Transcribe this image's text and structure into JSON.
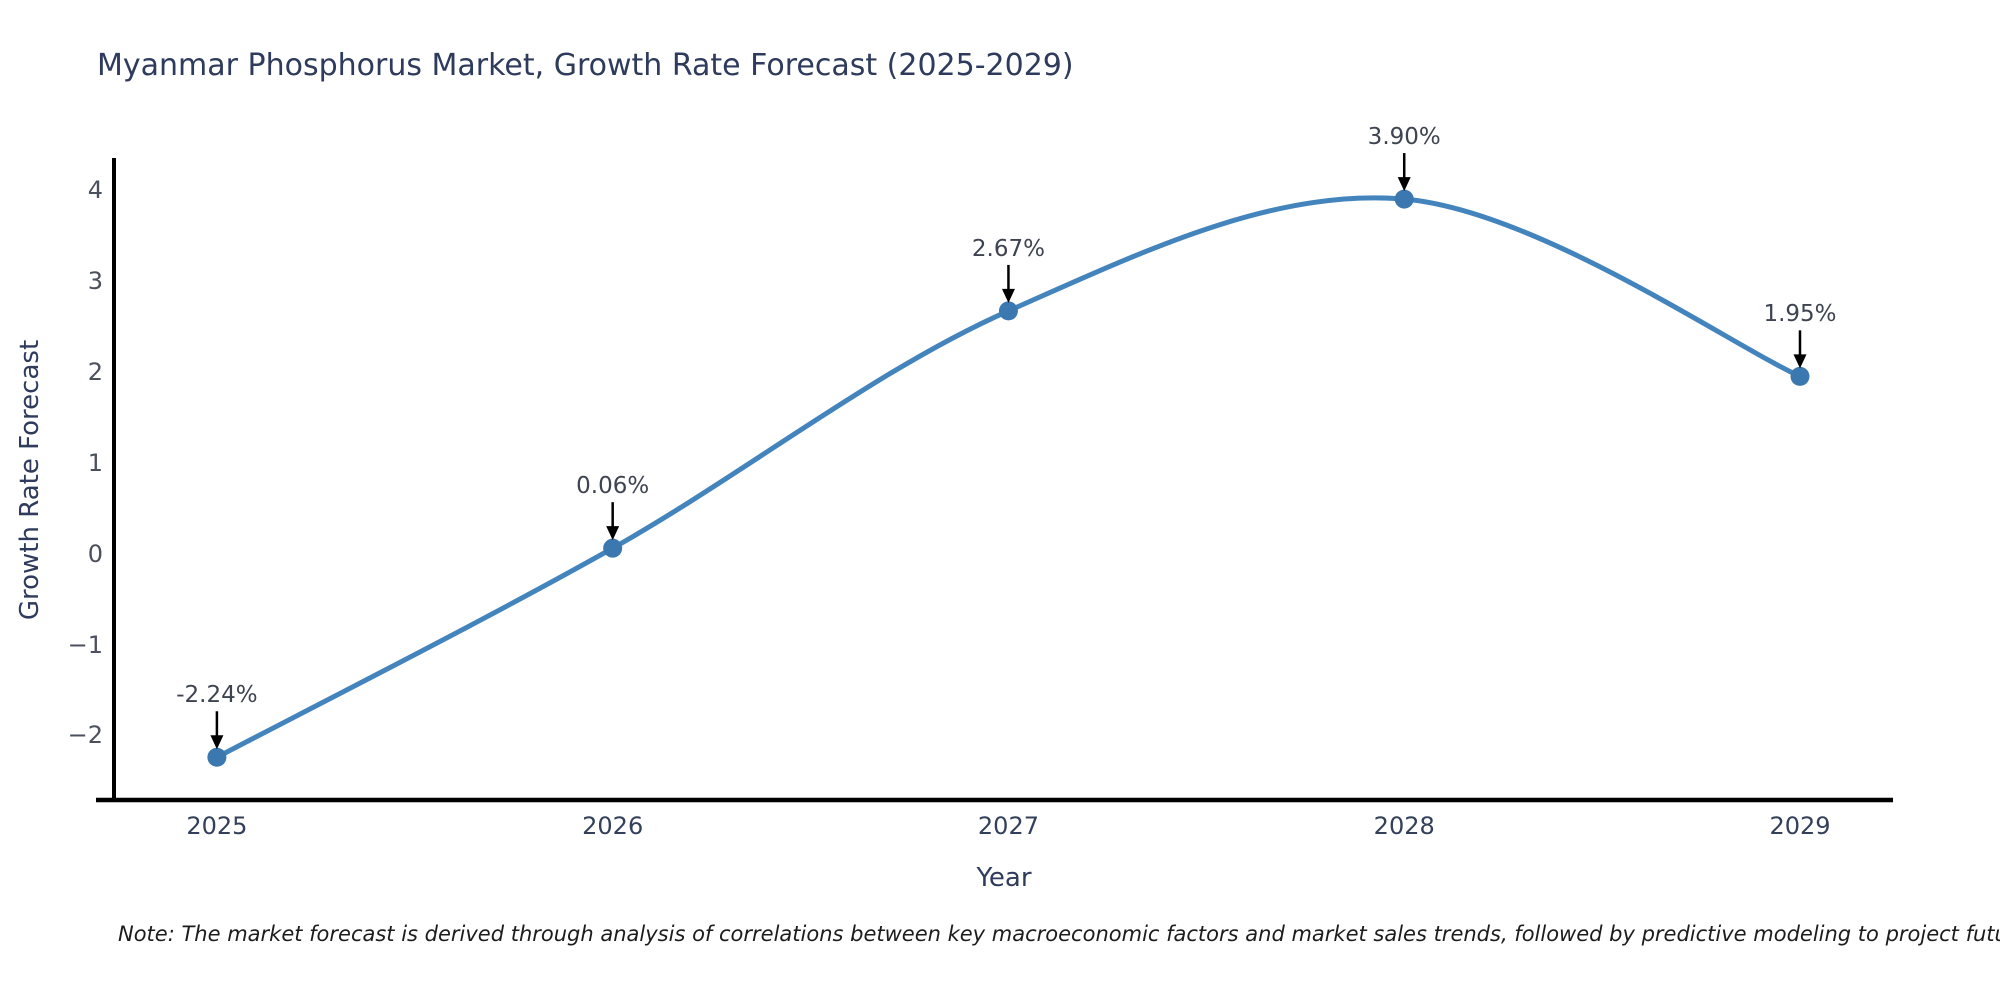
{
  "page": {
    "background": "#ffffff"
  },
  "chart_data": {
    "type": "line",
    "title": "Myanmar Phosphorus Market, Growth Rate Forecast (2025-2029)",
    "xlabel": "Year",
    "ylabel": "Growth Rate Forecast",
    "x": [
      2025,
      2026,
      2027,
      2028,
      2029
    ],
    "x_tick_labels": [
      "2025",
      "2026",
      "2027",
      "2028",
      "2029"
    ],
    "series": [
      {
        "name": "Growth Rate Forecast",
        "values": [
          -2.24,
          0.06,
          2.67,
          3.9,
          1.95
        ]
      }
    ],
    "point_annotations": [
      "-2.24%",
      "0.06%",
      "2.67%",
      "3.90%",
      "1.95%"
    ],
    "y_ticks": [
      -2,
      -1,
      0,
      1,
      2,
      3,
      4
    ],
    "y_tick_labels": [
      "−2",
      "−1",
      "0",
      "1",
      "2",
      "3",
      "4"
    ],
    "xlim": [
      2024.74,
      2029.235
    ],
    "ylim": [
      -2.71,
      4.33
    ],
    "grid": false,
    "legend_position": "none",
    "line_shape": "spline",
    "colors": {
      "line": "#4484bd",
      "marker": "#3b78b0",
      "axis": "#000000",
      "annotation_arrow": "#000000"
    }
  },
  "note": "Note: The market forecast is derived through analysis of correlations between key macroeconomic factors and market sales trends, followed by predictive modeling to project future sales"
}
